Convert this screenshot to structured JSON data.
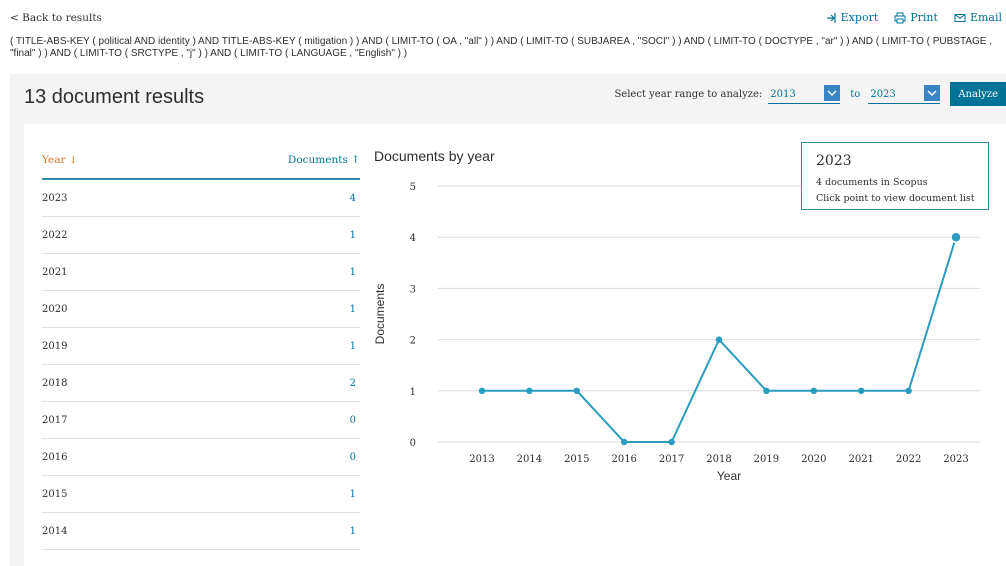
{
  "nav": {
    "back_label": "< Back to results"
  },
  "actions": {
    "export_label": "Export",
    "print_label": "Print",
    "email_label": "Email"
  },
  "query": {
    "text": "( TITLE-ABS-KEY ( political  AND identity )  AND  TITLE-ABS-KEY ( mitigation ) )  AND  ( LIMIT-TO ( OA ,  \"all\" ) )  AND  ( LIMIT-TO ( SUBJAREA ,  \"SOCI\" ) )  AND  ( LIMIT-TO ( DOCTYPE ,  \"ar\" ) )  AND  ( LIMIT-TO ( PUBSTAGE ,  \"final\" ) )  AND  ( LIMIT-TO ( SRCTYPE ,  \"j\" ) )  AND  ( LIMIT-TO ( LANGUAGE ,  \"English\" ) )"
  },
  "results": {
    "title": "13 document results"
  },
  "range": {
    "label": "Select year range to analyze:",
    "from": "2013",
    "to_word": "to",
    "to": "2023",
    "analyze_label": "Analyze"
  },
  "table": {
    "year_header": "Year",
    "docs_header": "Documents",
    "rows": [
      {
        "year": "2023",
        "count": "4"
      },
      {
        "year": "2022",
        "count": "1"
      },
      {
        "year": "2021",
        "count": "1"
      },
      {
        "year": "2020",
        "count": "1"
      },
      {
        "year": "2019",
        "count": "1"
      },
      {
        "year": "2018",
        "count": "2"
      },
      {
        "year": "2017",
        "count": "0"
      },
      {
        "year": "2016",
        "count": "0"
      },
      {
        "year": "2015",
        "count": "1"
      },
      {
        "year": "2014",
        "count": "1"
      }
    ]
  },
  "tooltip": {
    "year": "2023",
    "line1": "4 documents in Scopus",
    "line2": "Click point to view document list"
  },
  "colors": {
    "accent": "#007398",
    "line": "#2a9cc0",
    "sort": "#e3782b"
  },
  "chart_data": {
    "type": "line",
    "title": "Documents by year",
    "xlabel": "Year",
    "ylabel": "Documents",
    "x": [
      "2013",
      "2014",
      "2015",
      "2016",
      "2017",
      "2018",
      "2019",
      "2020",
      "2021",
      "2022",
      "2023"
    ],
    "series": [
      {
        "values": [
          1,
          1,
          1,
          0,
          0,
          2,
          1,
          1,
          1,
          1,
          4
        ]
      }
    ],
    "ylim": [
      0,
      5
    ],
    "yticks": [
      0,
      1,
      2,
      3,
      4,
      5
    ],
    "grid": true,
    "legend": "none"
  }
}
